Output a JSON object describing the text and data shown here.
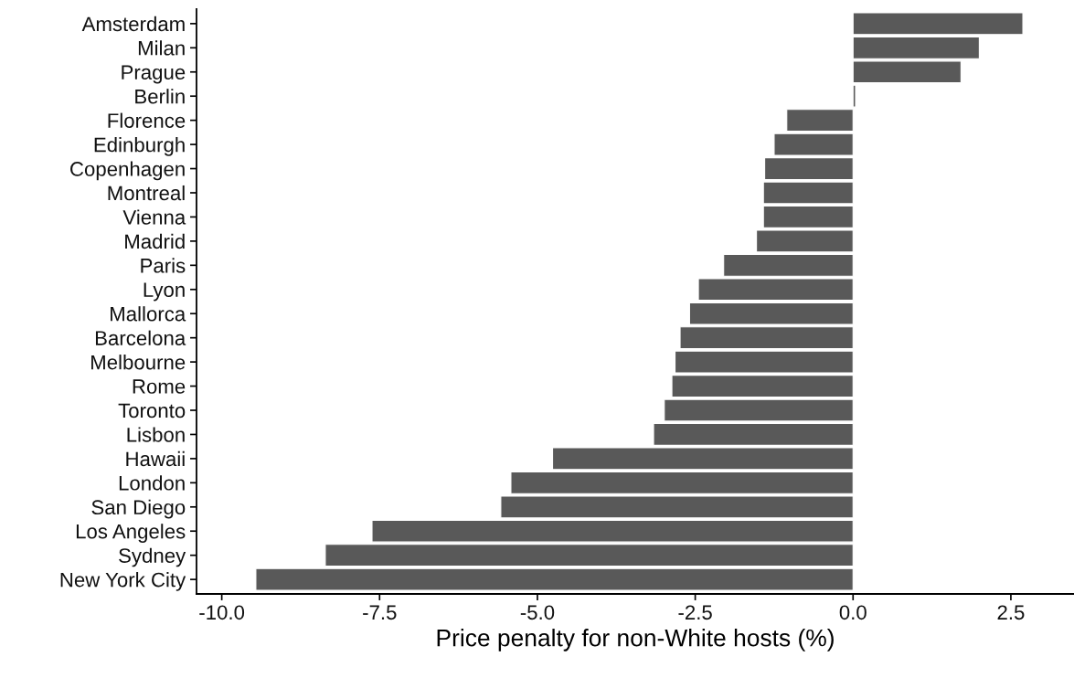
{
  "chart_data": {
    "type": "bar",
    "orientation": "horizontal",
    "xlabel": "Price penalty for non-White hosts (%)",
    "categories": [
      "Amsterdam",
      "Milan",
      "Prague",
      "Berlin",
      "Florence",
      "Edinburgh",
      "Copenhagen",
      "Montreal",
      "Vienna",
      "Madrid",
      "Paris",
      "Lyon",
      "Mallorca",
      "Barcelona",
      "Melbourne",
      "Rome",
      "Toronto",
      "Lisbon",
      "Hawaii",
      "London",
      "San Diego",
      "Los Angeles",
      "Sydney",
      "New York City"
    ],
    "values": [
      2.69,
      2.0,
      1.71,
      0.04,
      -1.05,
      -1.25,
      -1.4,
      -1.42,
      -1.42,
      -1.53,
      -2.05,
      -2.45,
      -2.59,
      -2.74,
      -2.82,
      -2.87,
      -2.99,
      -3.16,
      -4.76,
      -5.42,
      -5.58,
      -7.62,
      -8.36,
      -9.46
    ],
    "color": "#595959",
    "xlim": [
      -10.4,
      3.5
    ],
    "xticks": [
      {
        "value": -10,
        "label": "-10.0"
      },
      {
        "value": -7.5,
        "label": "-7.5"
      },
      {
        "value": -5,
        "label": "-5.0"
      },
      {
        "value": -2.5,
        "label": "-2.5"
      },
      {
        "value": 0,
        "label": "0.0"
      },
      {
        "value": 2.5,
        "label": "2.5"
      }
    ],
    "grid": false,
    "legend": false
  }
}
